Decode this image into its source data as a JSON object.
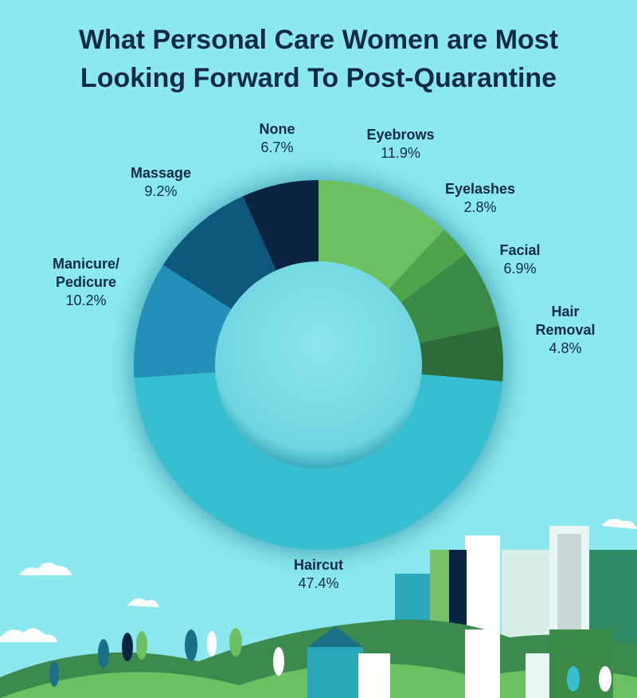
{
  "chart_data": {
    "type": "donut",
    "title": "What Personal Care Women are Most Looking Forward To Post-Quarantine",
    "categories": [
      "Eyebrows",
      "Eyelashes",
      "Facial",
      "Hair Removal",
      "Haircut",
      "Manicure/\nPedicure",
      "Massage",
      "None"
    ],
    "values": [
      11.9,
      2.8,
      6.9,
      4.8,
      47.4,
      10.2,
      9.2,
      6.7
    ],
    "value_labels": [
      "11.9%",
      "2.8%",
      "6.9%",
      "4.8%",
      "47.4%",
      "10.2%",
      "9.2%",
      "6.7%"
    ],
    "colors": [
      "#6cc061",
      "#4fa34b",
      "#3b8a46",
      "#2d6b3b",
      "#37bfd1",
      "#2290b8",
      "#0e587d",
      "#0a2540"
    ]
  }
}
